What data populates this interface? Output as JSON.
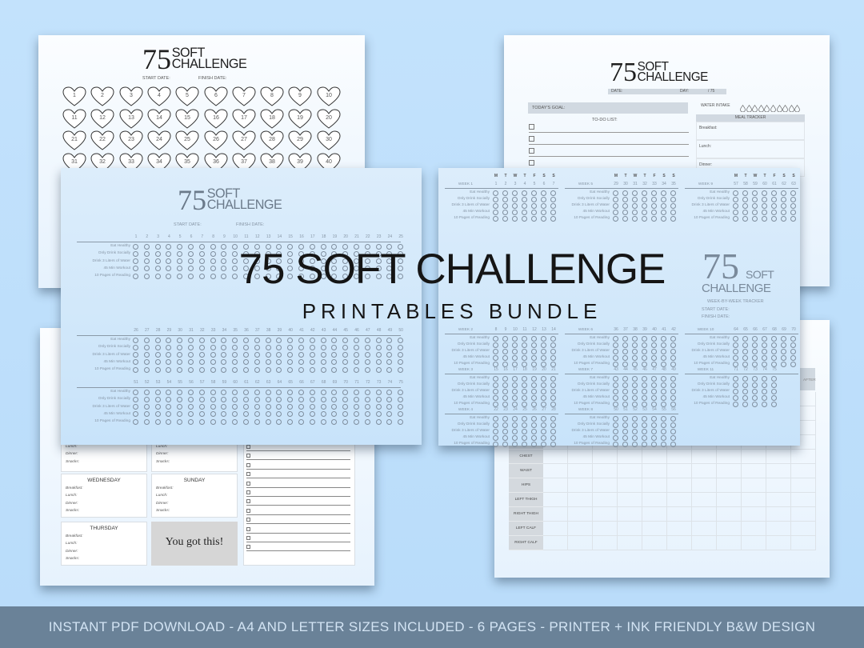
{
  "brand": {
    "number": "75",
    "word1": "SOFT",
    "word2": "CHALLENGE"
  },
  "colors": {
    "background": "#bfe0fb",
    "banner": "#6a8298",
    "banner_text": "#d3e4f4",
    "tracker_text": "#8796a6"
  },
  "hearts_page": {
    "start_label": "START DATE:",
    "finish_label": "FINISH DATE:",
    "hearts_visible": [
      1,
      40
    ],
    "icon": "heart-icon"
  },
  "daily_page": {
    "date_label": "DATE:",
    "day_label": "DAY:",
    "day_total": "/ 75",
    "goal_label": "TODAY'S GOAL:",
    "todo_label": "TO-DO LIST:",
    "water_label": "WATER INTAKE",
    "water_drops": 10,
    "meal_header": "MEAL TRACKER",
    "meals": [
      "Breakfast:",
      "Lunch:",
      "Dinner:"
    ]
  },
  "tracker_page": {
    "start_label": "START DATE:",
    "finish_label": "FINISH DATE:",
    "habits": [
      "Eat Healthy",
      "Only Drink Socially",
      "Drink 3 Liters of Water",
      "45 Min Workout",
      "10 Pages of Reading"
    ],
    "day_ranges": [
      [
        1,
        25
      ],
      [
        26,
        50
      ],
      [
        51,
        75
      ]
    ]
  },
  "weekly_page": {
    "weekdays": [
      "M",
      "T",
      "W",
      "T",
      "F",
      "S",
      "S"
    ],
    "subtitle": "WEEK-BY-WEEK TRACKER",
    "start_label": "START DATE:",
    "finish_label": "FINISH DATE:",
    "weeks": [
      {
        "label": "WEEK 1",
        "days": [
          1,
          2,
          3,
          4,
          5,
          6,
          7
        ]
      },
      {
        "label": "WEEK 2",
        "days": [
          8,
          9,
          10,
          11,
          12,
          13,
          14
        ]
      },
      {
        "label": "WEEK 3",
        "days": [
          15,
          16,
          17,
          18,
          19,
          20,
          21
        ]
      },
      {
        "label": "WEEK 4",
        "days": [
          22,
          23,
          24,
          25,
          26,
          27,
          28
        ]
      },
      {
        "label": "WEEK 5",
        "days": [
          29,
          30,
          31,
          32,
          33,
          34,
          35
        ]
      },
      {
        "label": "WEEK 6",
        "days": [
          36,
          37,
          38,
          39,
          40,
          41,
          42
        ]
      },
      {
        "label": "WEEK 7",
        "days": [
          43,
          44,
          45,
          46,
          47,
          48,
          49
        ]
      },
      {
        "label": "WEEK 8",
        "days": [
          50,
          51,
          52,
          53,
          54,
          55,
          56
        ]
      },
      {
        "label": "WEEK 9",
        "days": [
          57,
          58,
          59,
          60,
          61,
          62,
          63
        ]
      },
      {
        "label": "WEEK 10",
        "days": [
          64,
          65,
          66,
          67,
          68,
          69,
          70
        ]
      },
      {
        "label": "WEEK 11",
        "days": [
          71,
          72,
          73,
          74,
          75
        ]
      }
    ]
  },
  "meal_plan_page": {
    "meal_labels": [
      "Breakfast:",
      "Lunch:",
      "Dinner:",
      "Snacks:"
    ],
    "days": [
      "WEDNESDAY",
      "SUNDAY",
      "THURSDAY"
    ],
    "motivation": "You got this!"
  },
  "measurements_page": {
    "header_partial": "AFTER",
    "rows": [
      "CHEST",
      "WAIST",
      "HIPS",
      "LEFT THIGH",
      "RIGHT THIGH",
      "LEFT CALF",
      "RIGHT CALF"
    ]
  },
  "overlay": {
    "title": "75 SOFT CHALLENGE",
    "subtitle": "PRINTABLES BUNDLE"
  },
  "banner": {
    "text": "INSTANT PDF DOWNLOAD - A4 AND LETTER SIZES INCLUDED - 6 PAGES - PRINTER + INK FRIENDLY B&W DESIGN"
  }
}
